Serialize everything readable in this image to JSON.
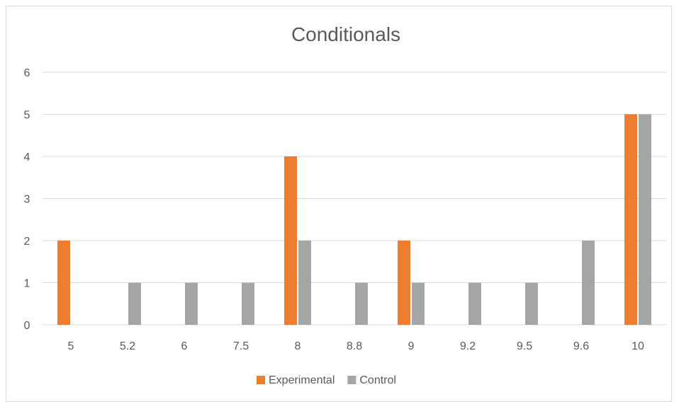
{
  "chart_data": {
    "type": "bar",
    "title": "Conditionals",
    "xlabel": "",
    "ylabel": "",
    "categories": [
      "5",
      "5.2",
      "6",
      "7.5",
      "8",
      "8.8",
      "9",
      "9.2",
      "9.5",
      "9.6",
      "10"
    ],
    "series": [
      {
        "name": "Experimental",
        "color": "#ED7D31",
        "values": [
          2,
          0,
          0,
          0,
          4,
          0,
          2,
          0,
          0,
          0,
          5
        ]
      },
      {
        "name": "Control",
        "color": "#A5A5A5",
        "values": [
          0,
          1,
          1,
          1,
          2,
          1,
          1,
          1,
          1,
          2,
          5
        ]
      }
    ],
    "ylim": [
      0,
      6
    ],
    "yticks": [
      "0",
      "1",
      "2",
      "3",
      "4",
      "5",
      "6"
    ],
    "grid": true,
    "legend": "bottom"
  }
}
